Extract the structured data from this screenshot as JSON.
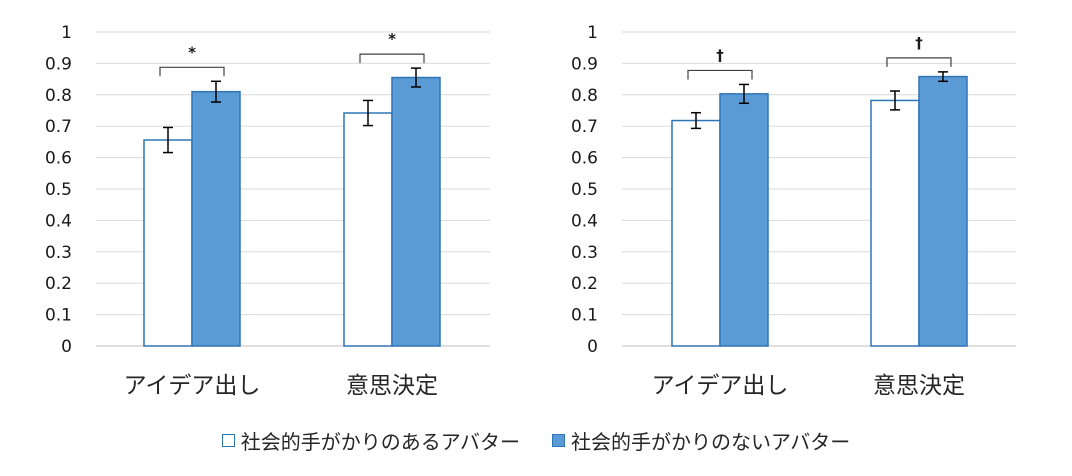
{
  "chart_data": [
    {
      "type": "bar",
      "categories": [
        "アイデア出し",
        "意思決定"
      ],
      "series": [
        {
          "name": "社会的手がかりのあるアバター",
          "values": [
            0.656,
            0.742
          ],
          "errors": [
            0.04,
            0.04
          ]
        },
        {
          "name": "社会的手がかりのないアバター",
          "values": [
            0.81,
            0.855
          ],
          "errors": [
            0.033,
            0.03
          ]
        }
      ],
      "significance": [
        "*",
        "*"
      ],
      "ylim": [
        0,
        1
      ],
      "yticks": [
        "0",
        "0.1",
        "0.2",
        "0.3",
        "0.4",
        "0.5",
        "0.6",
        "0.7",
        "0.8",
        "0.9",
        "1"
      ],
      "grid": true
    },
    {
      "type": "bar",
      "categories": [
        "アイデア出し",
        "意思決定"
      ],
      "series": [
        {
          "name": "社会的手がかりのあるアバター",
          "values": [
            0.718,
            0.782
          ],
          "errors": [
            0.025,
            0.03
          ]
        },
        {
          "name": "社会的手がかりのないアバター",
          "values": [
            0.803,
            0.858
          ],
          "errors": [
            0.03,
            0.015
          ]
        }
      ],
      "significance": [
        "†",
        "†"
      ],
      "ylim": [
        0,
        1
      ],
      "yticks": [
        "0",
        "0.1",
        "0.2",
        "0.3",
        "0.4",
        "0.5",
        "0.6",
        "0.7",
        "0.8",
        "0.9",
        "1"
      ],
      "grid": true
    }
  ],
  "legend": {
    "items": [
      {
        "label": "社会的手がかりのあるアバター",
        "fill": "#ffffff",
        "border": "#2e75b6"
      },
      {
        "label": "社会的手がかりのないアバター",
        "fill": "#5b9bd5",
        "border": "#2e75b6"
      }
    ]
  },
  "colors": {
    "with_cue_fill": "#ffffff",
    "without_cue_fill": "#5b9bd5",
    "bar_border": "#2e75b6",
    "grid": "#d9d9d9",
    "axis": "#bfbfbf"
  }
}
